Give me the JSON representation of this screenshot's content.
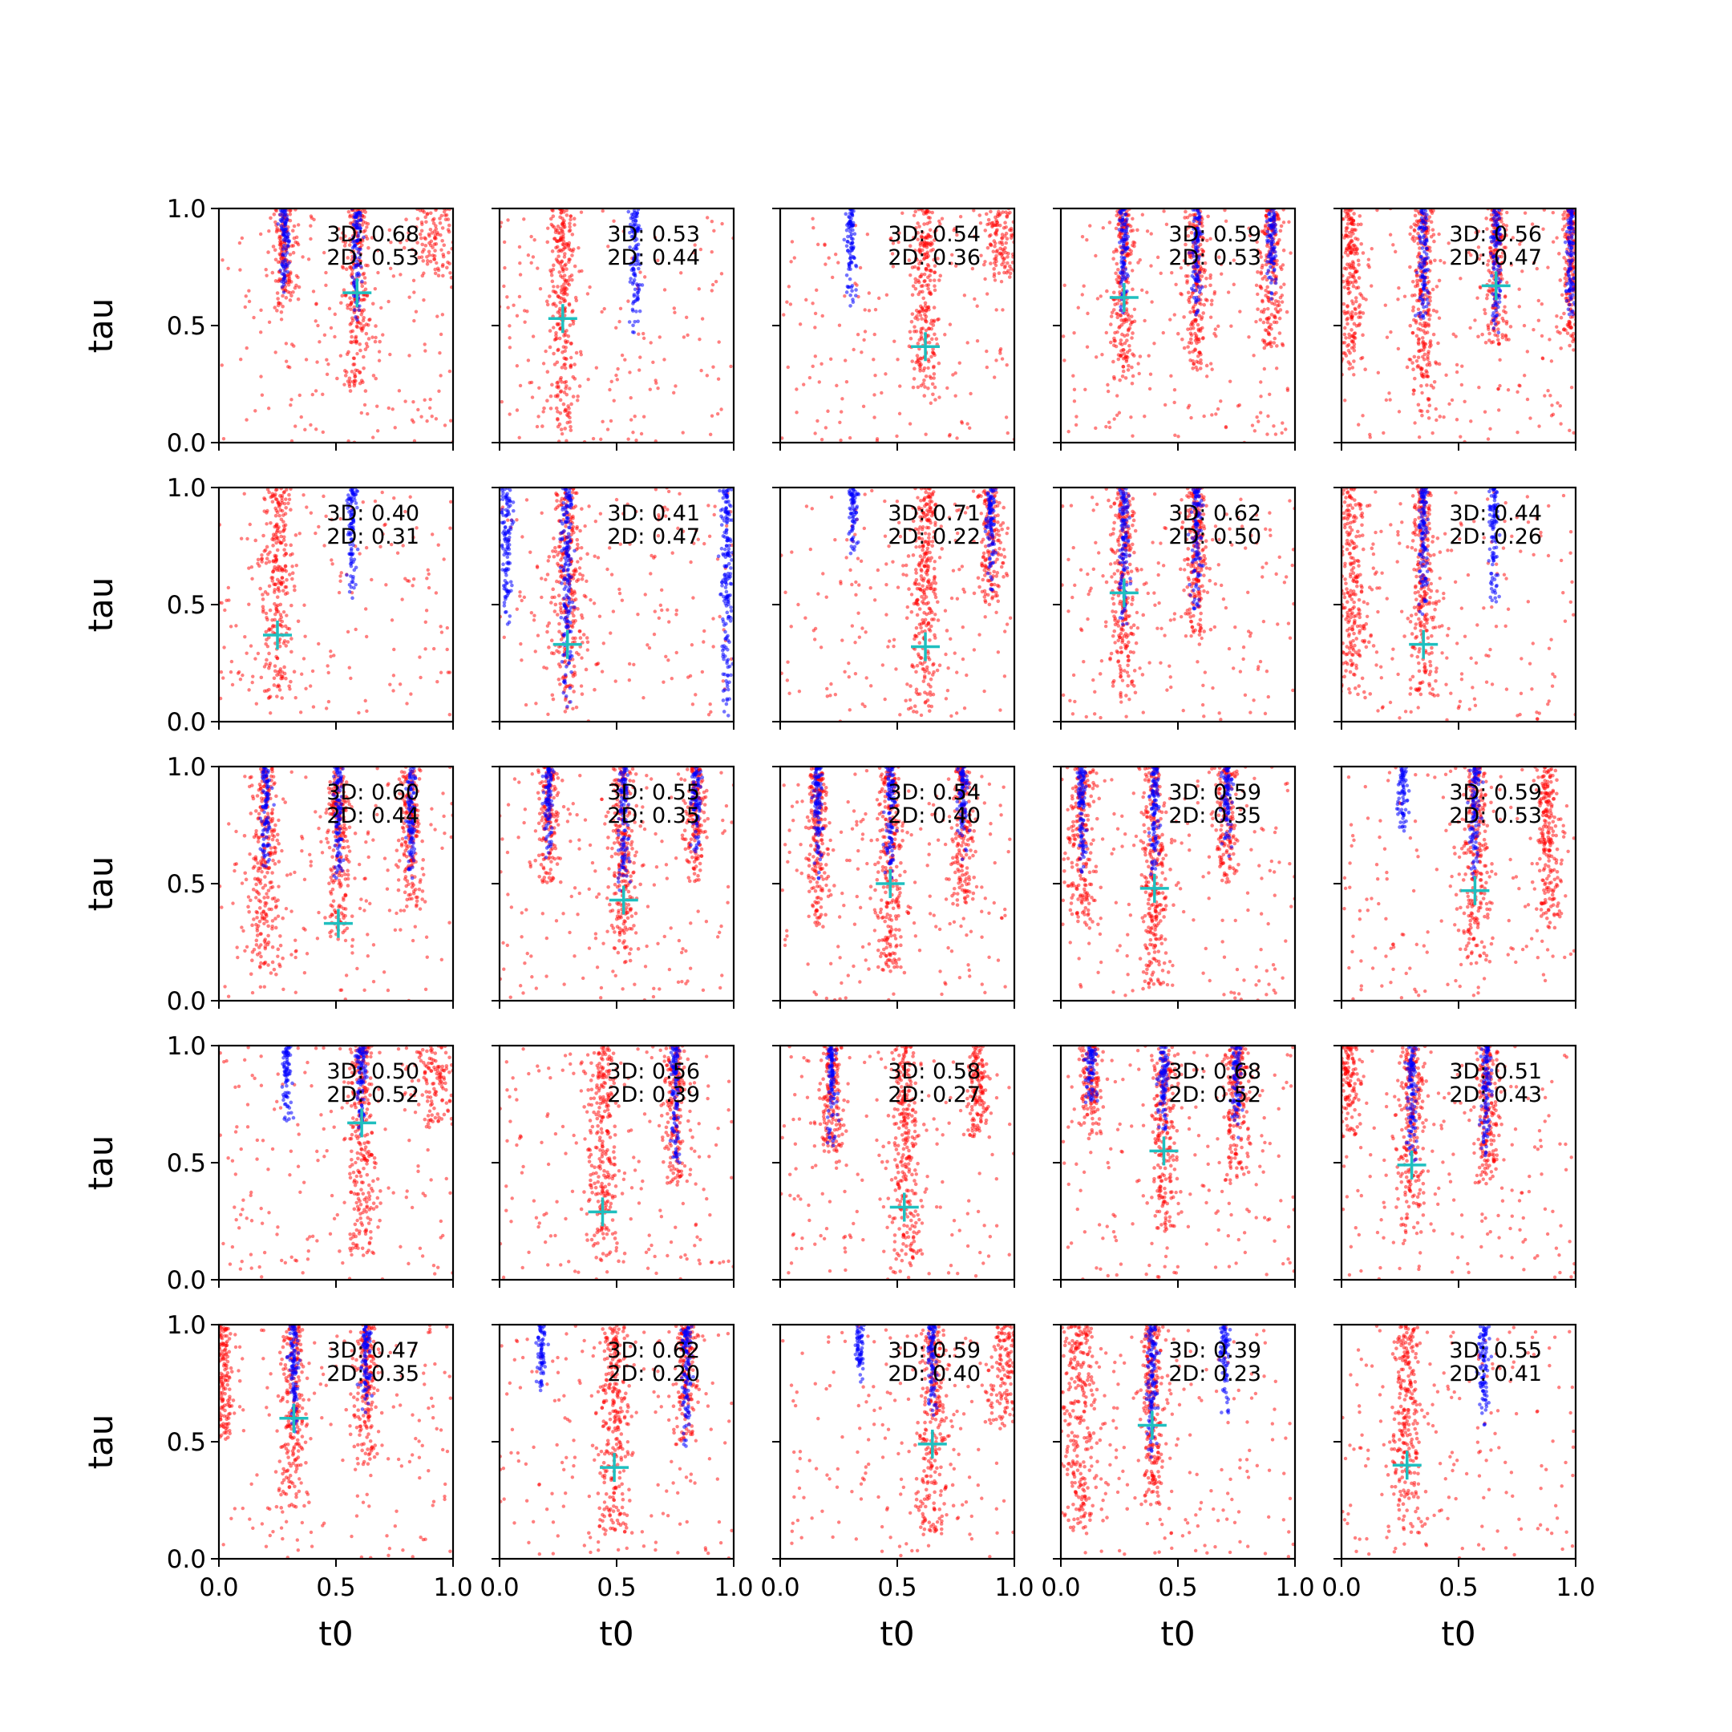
{
  "chart_data": {
    "type": "scatter",
    "rows": 5,
    "cols": 5,
    "xlabel": "t0",
    "ylabel": "tau",
    "xlim": [
      0,
      1
    ],
    "ylim": [
      0,
      1
    ],
    "xticks": [
      "0.0",
      "0.5",
      "1.0"
    ],
    "yticks": [
      "0.0",
      "0.5",
      "1.0"
    ],
    "grid": false,
    "colors": {
      "primary": "#ff0000",
      "secondary": "#0000ff",
      "marker": "#1fbfbf"
    },
    "panels": [
      {
        "label3d": "3D: 0.68",
        "label2d": "2D: 0.53",
        "marker": [
          0.59,
          0.64
        ],
        "red_bands": [
          [
            0.59,
            0.22,
            1.0,
            0.025
          ],
          [
            0.28,
            0.55,
            1.0,
            0.02
          ],
          [
            0.92,
            0.7,
            1.0,
            0.05
          ]
        ],
        "blue_bands": [
          [
            0.28,
            0.58,
            1.0,
            0.01
          ],
          [
            0.59,
            0.5,
            1.0,
            0.01
          ]
        ]
      },
      {
        "label3d": "3D: 0.53",
        "label2d": "2D: 0.44",
        "marker": [
          0.27,
          0.53
        ],
        "red_bands": [
          [
            0.27,
            0.05,
            1.0,
            0.022
          ]
        ],
        "blue_bands": [
          [
            0.58,
            0.45,
            1.0,
            0.012
          ]
        ]
      },
      {
        "label3d": "3D: 0.54",
        "label2d": "2D: 0.36",
        "marker": [
          0.62,
          0.41
        ],
        "red_bands": [
          [
            0.62,
            0.17,
            1.0,
            0.022
          ],
          [
            0.95,
            0.7,
            1.0,
            0.03
          ]
        ],
        "blue_bands": [
          [
            0.3,
            0.58,
            1.0,
            0.01
          ]
        ]
      },
      {
        "label3d": "3D: 0.59",
        "label2d": "2D: 0.53",
        "marker": [
          0.27,
          0.62
        ],
        "red_bands": [
          [
            0.27,
            0.25,
            1.0,
            0.02
          ],
          [
            0.58,
            0.3,
            1.0,
            0.02
          ],
          [
            0.9,
            0.4,
            1.0,
            0.02
          ]
        ],
        "blue_bands": [
          [
            0.27,
            0.55,
            1.0,
            0.01
          ],
          [
            0.58,
            0.5,
            1.0,
            0.01
          ],
          [
            0.9,
            0.6,
            1.0,
            0.01
          ]
        ]
      },
      {
        "label3d": "3D: 0.56",
        "label2d": "2D: 0.47",
        "marker": [
          0.66,
          0.67
        ],
        "red_bands": [
          [
            0.04,
            0.3,
            1.0,
            0.02
          ],
          [
            0.35,
            0.1,
            1.0,
            0.02
          ],
          [
            0.66,
            0.4,
            1.0,
            0.02
          ],
          [
            0.98,
            0.4,
            1.0,
            0.015
          ]
        ],
        "blue_bands": [
          [
            0.35,
            0.5,
            1.0,
            0.01
          ],
          [
            0.66,
            0.45,
            1.0,
            0.01
          ],
          [
            0.98,
            0.5,
            1.0,
            0.01
          ]
        ]
      },
      {
        "label3d": "3D: 0.40",
        "label2d": "2D: 0.31",
        "marker": [
          0.25,
          0.37
        ],
        "red_bands": [
          [
            0.25,
            0.1,
            1.0,
            0.025
          ]
        ],
        "blue_bands": [
          [
            0.57,
            0.52,
            1.0,
            0.01
          ]
        ]
      },
      {
        "label3d": "3D: 0.41",
        "label2d": "2D: 0.47",
        "marker": [
          0.29,
          0.33
        ],
        "red_bands": [
          [
            0.29,
            0.03,
            1.0,
            0.025
          ]
        ],
        "blue_bands": [
          [
            0.29,
            0.05,
            1.0,
            0.012
          ],
          [
            0.03,
            0.4,
            1.0,
            0.012
          ],
          [
            0.97,
            0.0,
            1.0,
            0.012
          ]
        ]
      },
      {
        "label3d": "3D: 0.71",
        "label2d": "2D: 0.22",
        "marker": [
          0.62,
          0.32
        ],
        "red_bands": [
          [
            0.62,
            0.02,
            1.0,
            0.022
          ],
          [
            0.9,
            0.5,
            1.0,
            0.02
          ]
        ],
        "blue_bands": [
          [
            0.31,
            0.7,
            1.0,
            0.01
          ],
          [
            0.9,
            0.55,
            1.0,
            0.01
          ]
        ]
      },
      {
        "label3d": "3D: 0.62",
        "label2d": "2D: 0.50",
        "marker": [
          0.27,
          0.55
        ],
        "red_bands": [
          [
            0.27,
            0.1,
            1.0,
            0.022
          ],
          [
            0.58,
            0.3,
            1.0,
            0.02
          ]
        ],
        "blue_bands": [
          [
            0.27,
            0.4,
            1.0,
            0.01
          ],
          [
            0.58,
            0.45,
            1.0,
            0.01
          ]
        ]
      },
      {
        "label3d": "3D: 0.44",
        "label2d": "2D: 0.26",
        "marker": [
          0.35,
          0.33
        ],
        "red_bands": [
          [
            0.04,
            0.1,
            1.0,
            0.03
          ],
          [
            0.35,
            0.1,
            1.0,
            0.02
          ]
        ],
        "blue_bands": [
          [
            0.35,
            0.45,
            1.0,
            0.01
          ],
          [
            0.65,
            0.5,
            1.0,
            0.01
          ]
        ]
      },
      {
        "label3d": "3D: 0.60",
        "label2d": "2D: 0.44",
        "marker": [
          0.51,
          0.33
        ],
        "red_bands": [
          [
            0.2,
            0.1,
            1.0,
            0.025
          ],
          [
            0.51,
            0.25,
            1.0,
            0.02
          ],
          [
            0.82,
            0.4,
            1.0,
            0.02
          ]
        ],
        "blue_bands": [
          [
            0.2,
            0.55,
            1.0,
            0.01
          ],
          [
            0.51,
            0.5,
            1.0,
            0.01
          ],
          [
            0.82,
            0.5,
            1.0,
            0.01
          ]
        ]
      },
      {
        "label3d": "3D: 0.55",
        "label2d": "2D: 0.35",
        "marker": [
          0.53,
          0.43
        ],
        "red_bands": [
          [
            0.53,
            0.15,
            1.0,
            0.022
          ],
          [
            0.21,
            0.5,
            1.0,
            0.02
          ],
          [
            0.84,
            0.5,
            1.0,
            0.02
          ]
        ],
        "blue_bands": [
          [
            0.53,
            0.45,
            1.0,
            0.01
          ],
          [
            0.21,
            0.6,
            1.0,
            0.01
          ],
          [
            0.84,
            0.6,
            1.0,
            0.01
          ]
        ]
      },
      {
        "label3d": "3D: 0.54",
        "label2d": "2D: 0.40",
        "marker": [
          0.47,
          0.5
        ],
        "red_bands": [
          [
            0.47,
            0.1,
            1.0,
            0.022
          ],
          [
            0.16,
            0.3,
            1.0,
            0.02
          ],
          [
            0.78,
            0.4,
            1.0,
            0.02
          ]
        ],
        "blue_bands": [
          [
            0.47,
            0.5,
            1.0,
            0.01
          ],
          [
            0.16,
            0.5,
            1.0,
            0.01
          ],
          [
            0.78,
            0.6,
            1.0,
            0.01
          ]
        ]
      },
      {
        "label3d": "3D: 0.59",
        "label2d": "2D: 0.35",
        "marker": [
          0.4,
          0.48
        ],
        "red_bands": [
          [
            0.4,
            0.05,
            1.0,
            0.022
          ],
          [
            0.09,
            0.3,
            1.0,
            0.025
          ],
          [
            0.71,
            0.5,
            1.0,
            0.02
          ]
        ],
        "blue_bands": [
          [
            0.4,
            0.5,
            1.0,
            0.01
          ],
          [
            0.09,
            0.5,
            1.0,
            0.01
          ],
          [
            0.71,
            0.6,
            1.0,
            0.01
          ]
        ]
      },
      {
        "label3d": "3D: 0.59",
        "label2d": "2D: 0.53",
        "marker": [
          0.57,
          0.47
        ],
        "red_bands": [
          [
            0.57,
            0.15,
            1.0,
            0.025
          ],
          [
            0.88,
            0.3,
            1.0,
            0.02
          ]
        ],
        "blue_bands": [
          [
            0.26,
            0.7,
            1.0,
            0.01
          ],
          [
            0.57,
            0.5,
            1.0,
            0.01
          ]
        ]
      },
      {
        "label3d": "3D: 0.50",
        "label2d": "2D: 0.52",
        "marker": [
          0.61,
          0.67
        ],
        "red_bands": [
          [
            0.61,
            0.1,
            1.0,
            0.025
          ],
          [
            0.92,
            0.65,
            1.0,
            0.04
          ]
        ],
        "blue_bands": [
          [
            0.29,
            0.65,
            1.0,
            0.01
          ],
          [
            0.61,
            0.6,
            1.0,
            0.01
          ]
        ]
      },
      {
        "label3d": "3D: 0.56",
        "label2d": "2D: 0.39",
        "marker": [
          0.44,
          0.29
        ],
        "red_bands": [
          [
            0.44,
            0.05,
            1.0,
            0.025
          ],
          [
            0.75,
            0.4,
            1.0,
            0.02
          ]
        ],
        "blue_bands": [
          [
            0.75,
            0.45,
            1.0,
            0.01
          ]
        ]
      },
      {
        "label3d": "3D: 0.58",
        "label2d": "2D: 0.27",
        "marker": [
          0.53,
          0.31
        ],
        "red_bands": [
          [
            0.53,
            0.02,
            1.0,
            0.025
          ],
          [
            0.22,
            0.5,
            1.0,
            0.02
          ],
          [
            0.84,
            0.6,
            1.0,
            0.02
          ]
        ],
        "blue_bands": [
          [
            0.22,
            0.55,
            1.0,
            0.01
          ]
        ]
      },
      {
        "label3d": "3D: 0.68",
        "label2d": "2D: 0.52",
        "marker": [
          0.44,
          0.55
        ],
        "red_bands": [
          [
            0.44,
            0.2,
            1.0,
            0.022
          ],
          [
            0.75,
            0.4,
            1.0,
            0.022
          ],
          [
            0.13,
            0.6,
            1.0,
            0.02
          ]
        ],
        "blue_bands": [
          [
            0.44,
            0.6,
            1.0,
            0.01
          ],
          [
            0.75,
            0.6,
            1.0,
            0.01
          ],
          [
            0.13,
            0.7,
            1.0,
            0.01
          ]
        ]
      },
      {
        "label3d": "3D: 0.51",
        "label2d": "2D: 0.43",
        "marker": [
          0.3,
          0.49
        ],
        "red_bands": [
          [
            0.3,
            0.2,
            1.0,
            0.025
          ],
          [
            0.62,
            0.4,
            1.0,
            0.022
          ],
          [
            0.03,
            0.6,
            1.0,
            0.02
          ]
        ],
        "blue_bands": [
          [
            0.3,
            0.5,
            1.0,
            0.01
          ],
          [
            0.62,
            0.5,
            1.0,
            0.01
          ]
        ]
      },
      {
        "label3d": "3D: 0.47",
        "label2d": "2D: 0.35",
        "marker": [
          0.32,
          0.6
        ],
        "red_bands": [
          [
            0.32,
            0.2,
            1.0,
            0.022
          ],
          [
            0.63,
            0.4,
            1.0,
            0.02
          ],
          [
            0.02,
            0.5,
            1.0,
            0.02
          ]
        ],
        "blue_bands": [
          [
            0.32,
            0.5,
            1.0,
            0.01
          ],
          [
            0.63,
            0.6,
            1.0,
            0.01
          ]
        ]
      },
      {
        "label3d": "3D: 0.62",
        "label2d": "2D: 0.20",
        "marker": [
          0.49,
          0.39
        ],
        "red_bands": [
          [
            0.49,
            0.05,
            1.0,
            0.025
          ],
          [
            0.8,
            0.5,
            1.0,
            0.02
          ]
        ],
        "blue_bands": [
          [
            0.8,
            0.45,
            1.0,
            0.01
          ],
          [
            0.18,
            0.7,
            1.0,
            0.01
          ]
        ]
      },
      {
        "label3d": "3D: 0.59",
        "label2d": "2D: 0.40",
        "marker": [
          0.65,
          0.49
        ],
        "red_bands": [
          [
            0.65,
            0.1,
            1.0,
            0.025
          ],
          [
            0.96,
            0.55,
            1.0,
            0.03
          ]
        ],
        "blue_bands": [
          [
            0.34,
            0.75,
            1.0,
            0.01
          ],
          [
            0.65,
            0.6,
            1.0,
            0.01
          ]
        ]
      },
      {
        "label3d": "3D: 0.39",
        "label2d": "2D: 0.23",
        "marker": [
          0.39,
          0.57
        ],
        "red_bands": [
          [
            0.08,
            0.1,
            1.0,
            0.03
          ],
          [
            0.39,
            0.2,
            1.0,
            0.02
          ]
        ],
        "blue_bands": [
          [
            0.39,
            0.4,
            1.0,
            0.01
          ],
          [
            0.7,
            0.6,
            1.0,
            0.01
          ]
        ]
      },
      {
        "label3d": "3D: 0.55",
        "label2d": "2D: 0.41",
        "marker": [
          0.28,
          0.4
        ],
        "red_bands": [
          [
            0.28,
            0.1,
            1.0,
            0.025
          ]
        ],
        "blue_bands": [
          [
            0.61,
            0.55,
            1.0,
            0.012
          ]
        ]
      }
    ]
  }
}
